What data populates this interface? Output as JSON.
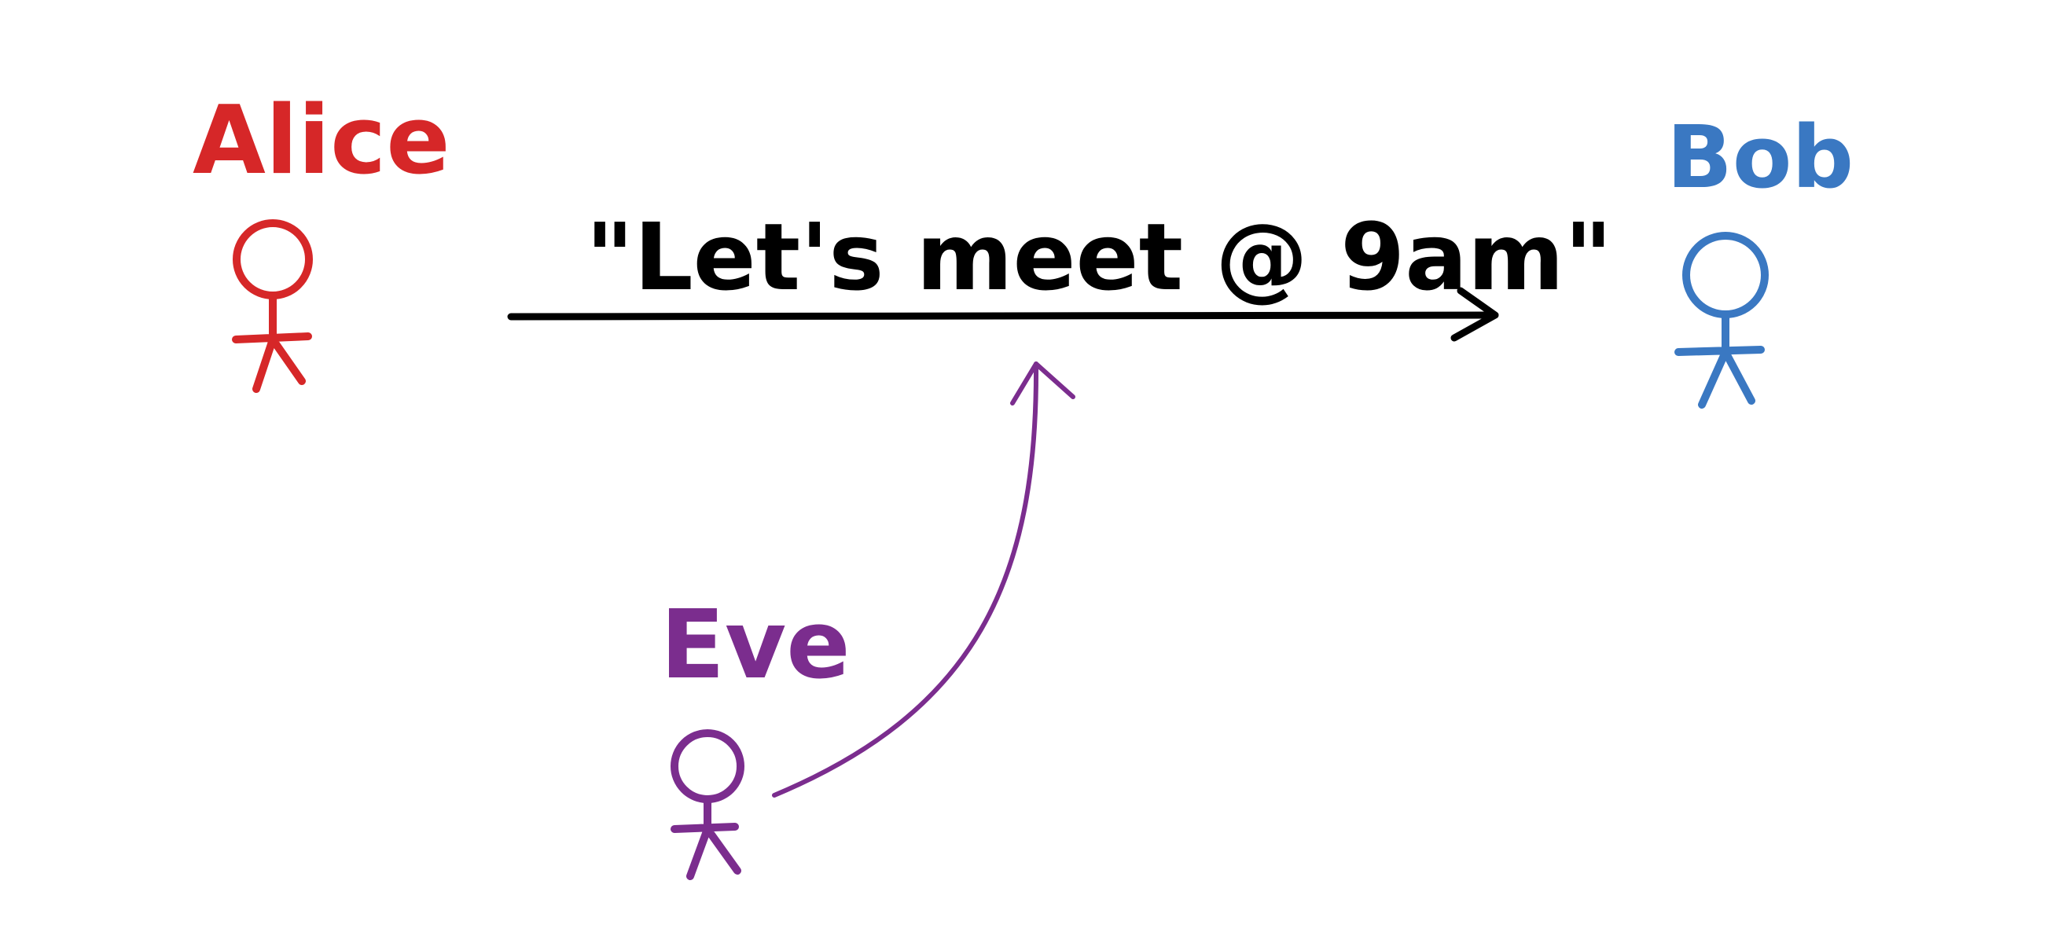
{
  "actors": {
    "alice": {
      "label": "Alice",
      "color": "#d62728"
    },
    "bob": {
      "label": "Bob",
      "color": "#3a78c2"
    },
    "eve": {
      "label": "Eve",
      "color": "#7b2d8e"
    }
  },
  "message": {
    "text": "\"Let's meet @ 9am\"",
    "color": "#000000"
  }
}
